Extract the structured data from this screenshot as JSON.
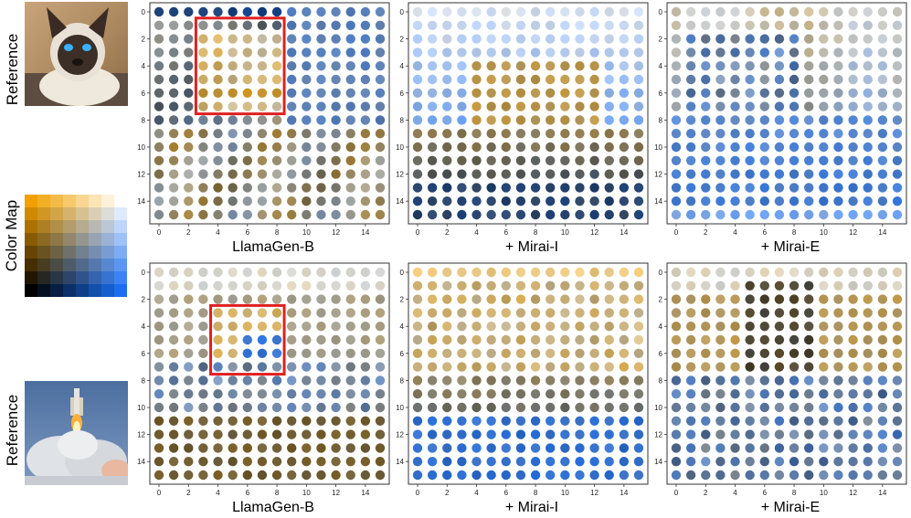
{
  "row_labels": {
    "top_reference": "Reference",
    "color_map": "Color Map",
    "bottom_reference": "Reference"
  },
  "captions": [
    "LlamaGen-B",
    "+ Mirai-I",
    "+ Mirai-E",
    "LlamaGen-B",
    "+ Mirai-I",
    "+ Mirai-E"
  ],
  "axis": {
    "x_ticks": [
      0,
      2,
      4,
      6,
      8,
      10,
      12,
      14
    ],
    "y_ticks": [
      0,
      2,
      4,
      6,
      8,
      10,
      12,
      14
    ],
    "range": [
      0,
      15
    ]
  },
  "colors": {
    "highlight": "#e02020",
    "axis": "#333333",
    "colormap_corners": {
      "top_left": "#f0a000",
      "top_right": "#ffffff",
      "bottom_left": "#000000",
      "bottom_right": "#1a6ef0"
    }
  },
  "highlights": {
    "top_llamagen": {
      "rows": [
        1,
        7
      ],
      "cols": [
        3,
        8
      ]
    },
    "bottom_llamagen": {
      "rows": [
        3,
        7
      ],
      "cols": [
        4,
        8
      ]
    }
  },
  "icons": {
    "top_reference": "siamese-cat-photo",
    "bottom_reference": "rocket-launch-photo"
  }
}
